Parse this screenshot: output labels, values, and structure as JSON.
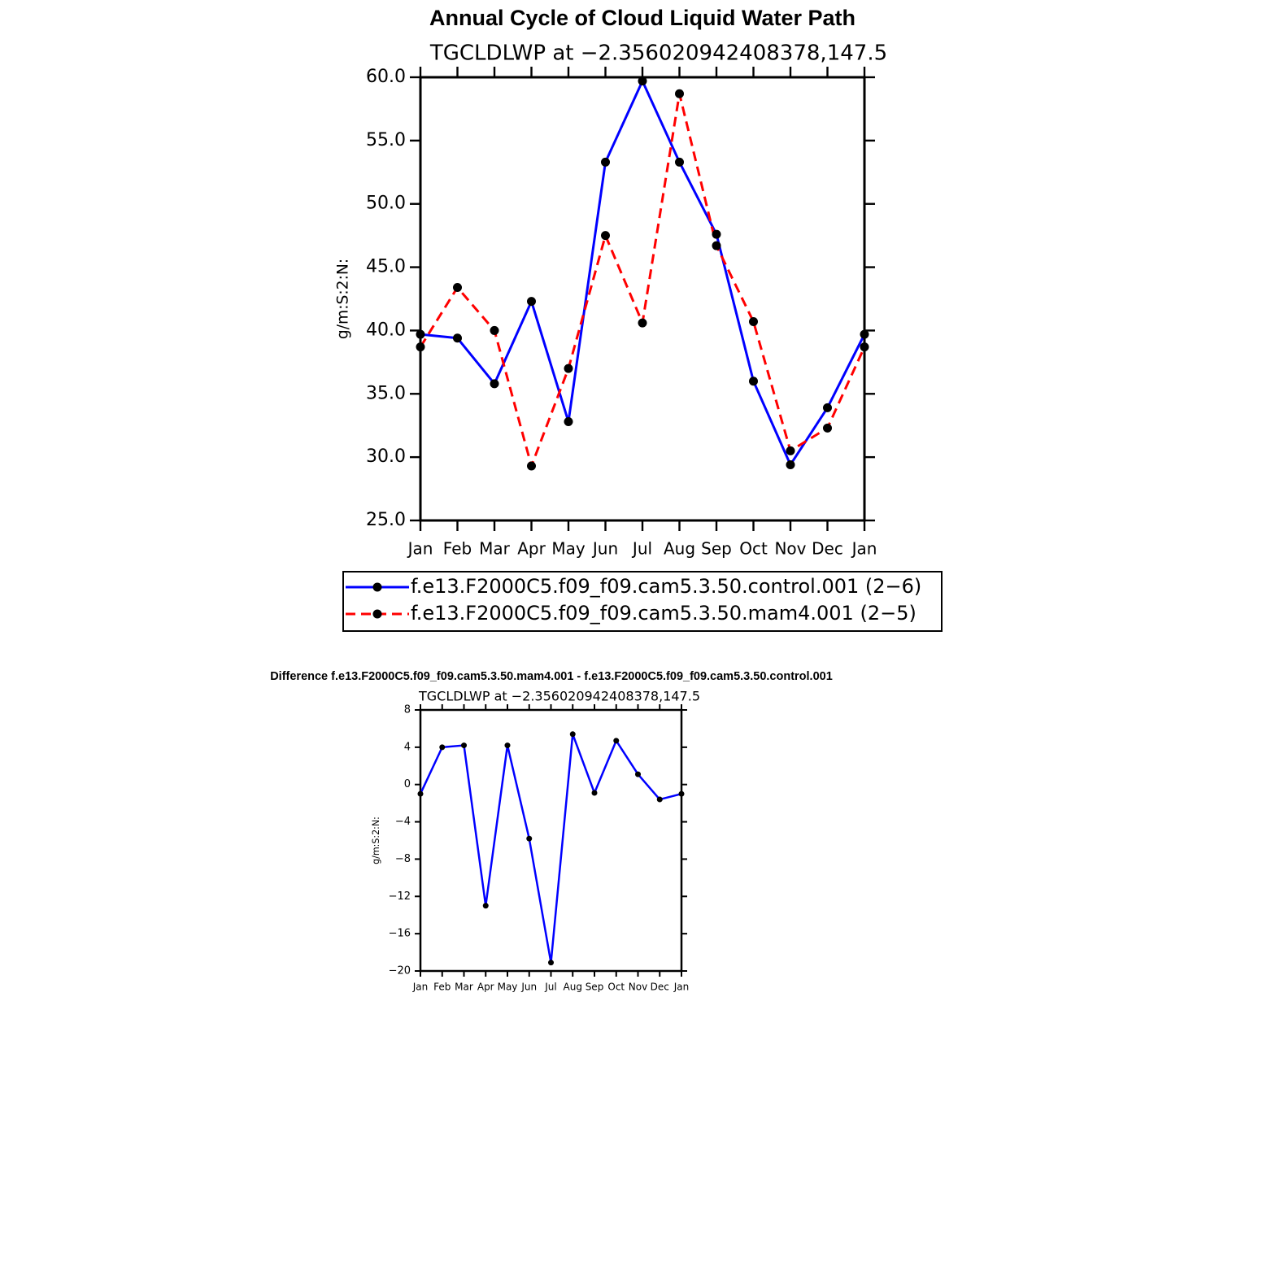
{
  "chart_data": [
    {
      "type": "line",
      "title": "Annual Cycle of Cloud Liquid Water Path",
      "subtitle": "TGCLDLWP at −2.356020942408378,147.5",
      "ylabel": "g/m:S:2:N:",
      "categories": [
        "Jan",
        "Feb",
        "Mar",
        "Apr",
        "May",
        "Jun",
        "Jul",
        "Aug",
        "Sep",
        "Oct",
        "Nov",
        "Dec",
        "Jan"
      ],
      "series": [
        {
          "name": "f.e13.F2000C5.f09_f09.cam5.3.50.control.001 (2−6)",
          "color": "#0000ff",
          "dashed": false,
          "values": [
            39.7,
            39.4,
            35.8,
            42.3,
            32.8,
            53.3,
            59.7,
            53.3,
            47.6,
            36.0,
            29.4,
            33.9,
            39.7
          ]
        },
        {
          "name": "f.e13.F2000C5.f09_f09.cam5.3.50.mam4.001 (2−5)",
          "color": "#ff0000",
          "dashed": true,
          "values": [
            38.7,
            43.4,
            40.0,
            29.3,
            37.0,
            47.5,
            40.6,
            58.7,
            46.7,
            40.7,
            30.5,
            32.3,
            38.7
          ]
        }
      ],
      "marker_color": "#000000",
      "ylim": [
        25,
        60
      ],
      "yticks": [
        {
          "value": 25,
          "label": "25.0"
        },
        {
          "value": 30,
          "label": "30.0"
        },
        {
          "value": 35,
          "label": "35.0"
        },
        {
          "value": 40,
          "label": "40.0"
        },
        {
          "value": 45,
          "label": "45.0"
        },
        {
          "value": 50,
          "label": "50.0"
        },
        {
          "value": 55,
          "label": "55.0"
        },
        {
          "value": 60,
          "label": "60.0"
        }
      ],
      "legend": "bottom"
    },
    {
      "type": "line",
      "title": "Difference f.e13.F2000C5.f09_f09.cam5.3.50.mam4.001 - f.e13.F2000C5.f09_f09.cam5.3.50.control.001",
      "subtitle": "TGCLDLWP at −2.356020942408378,147.5",
      "ylabel": "g/m:S:2:N:",
      "categories": [
        "Jan",
        "Feb",
        "Mar",
        "Apr",
        "May",
        "Jun",
        "Jul",
        "Aug",
        "Sep",
        "Oct",
        "Nov",
        "Dec",
        "Jan"
      ],
      "series": [
        {
          "color": "#0000ff",
          "dashed": false,
          "values": [
            -1.0,
            4.0,
            4.2,
            -13.0,
            4.2,
            -5.8,
            -19.1,
            5.4,
            -0.9,
            4.7,
            1.1,
            -1.6,
            -1.0
          ]
        }
      ],
      "marker_color": "#000000",
      "ylim": [
        -20,
        8
      ],
      "yticks": [
        {
          "value": -20,
          "label": "−20"
        },
        {
          "value": -16,
          "label": "−16"
        },
        {
          "value": -12,
          "label": "−12"
        },
        {
          "value": -8,
          "label": "−8"
        },
        {
          "value": -4,
          "label": "−4"
        },
        0,
        4,
        8
      ]
    }
  ]
}
